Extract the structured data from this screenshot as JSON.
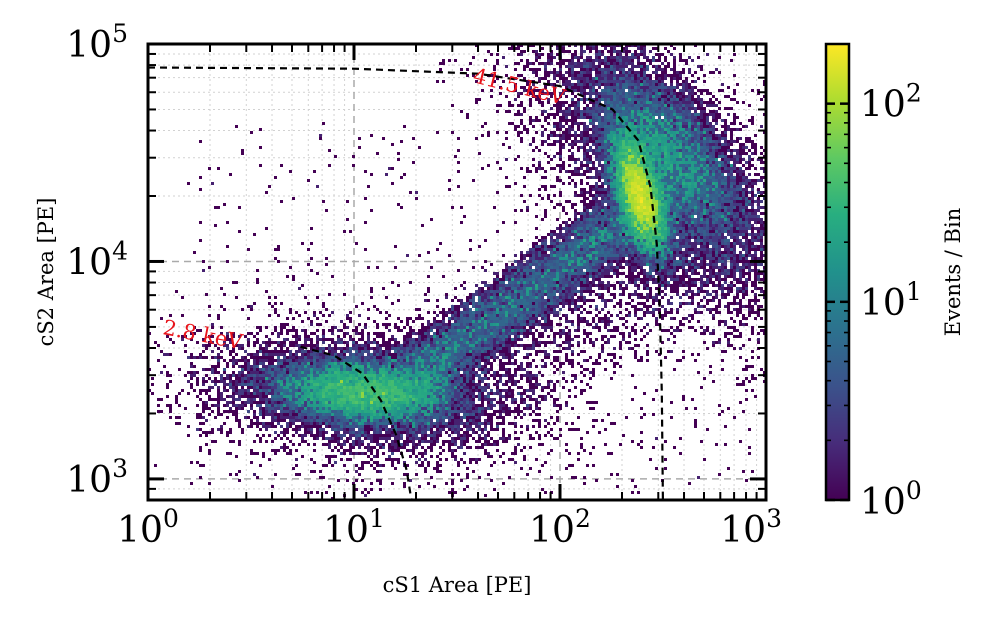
{
  "chart_data": {
    "type": "heatmap",
    "title": "",
    "xlabel": "cS1 Area [PE]",
    "ylabel": "cS2 Area [PE]",
    "xscale": "log",
    "yscale": "log",
    "xlim": [
      1,
      1000
    ],
    "ylim": [
      800,
      100000
    ],
    "x_ticks": [
      {
        "value": 1,
        "base": "10",
        "exp": "0"
      },
      {
        "value": 10,
        "base": "10",
        "exp": "1"
      },
      {
        "value": 100,
        "base": "10",
        "exp": "2"
      },
      {
        "value": 1000,
        "base": "10",
        "exp": "3"
      }
    ],
    "y_ticks": [
      {
        "value": 1000,
        "base": "10",
        "exp": "3"
      },
      {
        "value": 10000,
        "base": "10",
        "exp": "4"
      },
      {
        "value": 100000,
        "base": "10",
        "exp": "5"
      }
    ],
    "colorbar": {
      "label": "Events / Bin",
      "scale": "log",
      "range": [
        1,
        200
      ],
      "colormap": "viridis",
      "ticks": [
        {
          "value": 1,
          "base": "10",
          "exp": "0"
        },
        {
          "value": 10,
          "base": "10",
          "exp": "1"
        },
        {
          "value": 100,
          "base": "10",
          "exp": "2"
        }
      ]
    },
    "populations": [
      {
        "name": "2.8 keV population",
        "center_cs1": 11,
        "center_cs2": 2600,
        "peak_events_per_bin": 30
      },
      {
        "name": "41.5 keV population",
        "center_cs1": 250,
        "center_cs2": 18000,
        "peak_events_per_bin": 200
      }
    ],
    "energy_contours": [
      {
        "label": "2.8 keV",
        "points": [
          [
            5.5,
            4050
          ],
          [
            8,
            3700
          ],
          [
            11,
            3050
          ],
          [
            13.5,
            2300
          ],
          [
            16,
            1600
          ],
          [
            18,
            1100
          ],
          [
            19,
            800
          ]
        ]
      },
      {
        "label": "41.5 keV",
        "points": [
          [
            1,
            78000
          ],
          [
            10,
            77000
          ],
          [
            40,
            73000
          ],
          [
            100,
            64000
          ],
          [
            180,
            50000
          ],
          [
            240,
            36000
          ],
          [
            275,
            22000
          ],
          [
            295,
            12000
          ],
          [
            305,
            6000
          ],
          [
            312,
            2500
          ],
          [
            316,
            800
          ]
        ]
      }
    ],
    "annotation_color": "#e8141b",
    "grid": true
  }
}
